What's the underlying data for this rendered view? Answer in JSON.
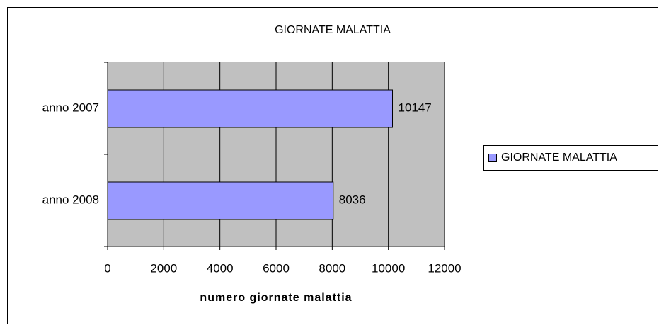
{
  "chart_data": {
    "type": "bar",
    "orientation": "horizontal",
    "title": "GIORNATE MALATTIA",
    "categories": [
      "anno 2007",
      "anno 2008"
    ],
    "series": [
      {
        "name": "GIORNATE MALATTIA",
        "color": "#9999ff",
        "values": [
          10147,
          8036
        ]
      }
    ],
    "xlabel": "numero giornate malattia",
    "xlim": [
      0,
      12000
    ],
    "xticks": [
      0,
      2000,
      4000,
      6000,
      8000,
      10000,
      12000
    ],
    "grid": true,
    "legend": "right"
  }
}
